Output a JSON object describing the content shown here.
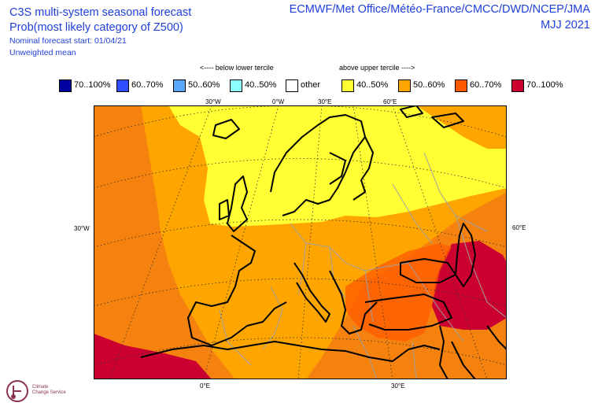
{
  "header": {
    "line1": "C3S multi-system seasonal forecast",
    "line2": "Prob(most likely category of Z500)",
    "line3": "Nominal forecast start: 01/04/21",
    "line4": "Unweighted mean",
    "providers": "ECMWF/Met Office/Météo-France/CMCC/DWD/NCEP/JMA",
    "season": "MJJ 2021"
  },
  "legend": {
    "below_header": "<---- below lower tercile",
    "above_header": "above upper tercile ---->",
    "items": [
      {
        "label": "70..100%",
        "color": "#00009f"
      },
      {
        "label": "60..70%",
        "color": "#2f4cff"
      },
      {
        "label": "50..60%",
        "color": "#5ca8ff"
      },
      {
        "label": "40..50%",
        "color": "#8cffff"
      },
      {
        "label": "other",
        "color": "#ffffff"
      },
      {
        "label": "40..50%",
        "color": "#ffff33"
      },
      {
        "label": "50..60%",
        "color": "#ffa500"
      },
      {
        "label": "60..70%",
        "color": "#ff5a00"
      },
      {
        "label": "70..100%",
        "color": "#cc0030"
      }
    ]
  },
  "map": {
    "colors": {
      "orange_60_70": "#f5820f",
      "orange_50_60": "#ffa500",
      "yellow_40_50": "#ffff33",
      "red_70_100": "#cc0030",
      "redorange": "#ff5a00"
    },
    "top_labels": [
      "30°W",
      "0°W",
      "30°E",
      "60°E"
    ],
    "left_label": "30°W",
    "right_label": "60°E",
    "bottom_labels": [
      "0°E",
      "30°E"
    ]
  },
  "logo": {
    "text_line1": "Climate",
    "text_line2": "Change Service"
  }
}
